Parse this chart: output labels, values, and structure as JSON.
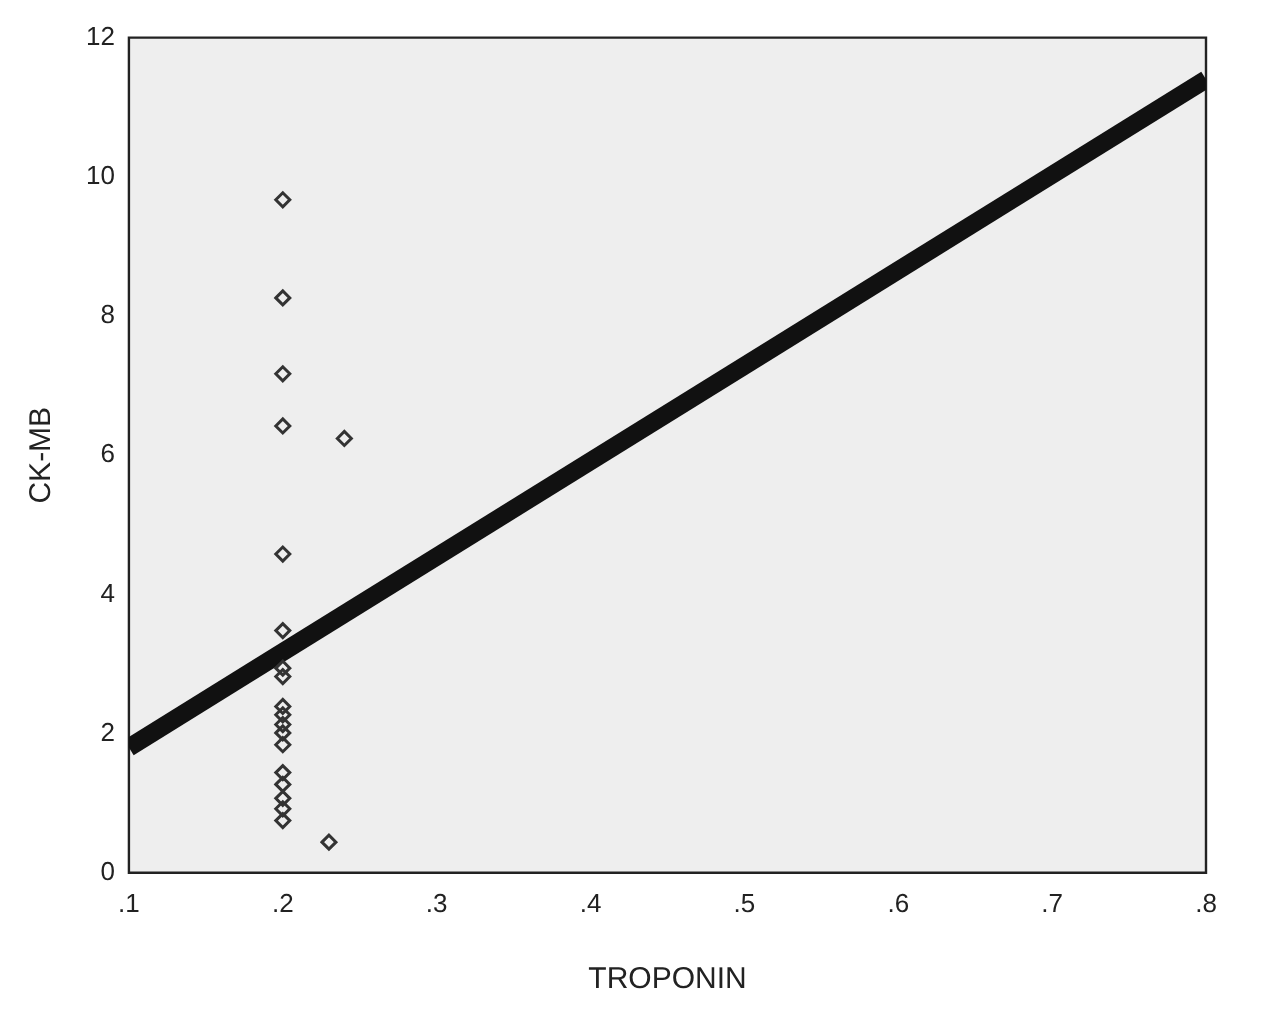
{
  "chart_data": {
    "type": "scatter",
    "xlabel": "TROPONIN",
    "ylabel": "CK-MB",
    "marker": "diamond",
    "legend": false,
    "grid": false,
    "xlim": [
      0.1,
      0.8
    ],
    "ylim": [
      0,
      12
    ],
    "xticks": [
      {
        "value": 0.1,
        "label": ".1"
      },
      {
        "value": 0.2,
        "label": ".2"
      },
      {
        "value": 0.3,
        "label": ".3"
      },
      {
        "value": 0.4,
        "label": ".4"
      },
      {
        "value": 0.5,
        "label": ".5"
      },
      {
        "value": 0.6,
        "label": ".6"
      },
      {
        "value": 0.7,
        "label": ".7"
      },
      {
        "value": 0.8,
        "label": ".8"
      }
    ],
    "yticks": [
      0,
      2,
      4,
      6,
      8,
      10,
      12
    ],
    "series": [
      {
        "color": "#333333",
        "x": [
          0.2,
          0.2,
          0.2,
          0.2,
          0.2,
          0.2,
          0.2,
          0.2,
          0.2,
          0.2,
          0.2,
          0.2,
          0.2,
          0.2,
          0.2,
          0.2,
          0.2,
          0.2,
          0.24,
          0.23
        ],
        "values": [
          9.67,
          8.26,
          7.17,
          6.42,
          4.58,
          3.48,
          2.94,
          2.82,
          2.39,
          2.27,
          2.13,
          2.01,
          1.84,
          1.44,
          1.27,
          1.07,
          0.92,
          0.75,
          6.24,
          0.44
        ]
      },
      {
        "type": "line",
        "color": "#111111",
        "marker": "none",
        "x": [
          0.1,
          0.8
        ],
        "values": [
          1.8,
          11.4
        ]
      }
    ]
  }
}
